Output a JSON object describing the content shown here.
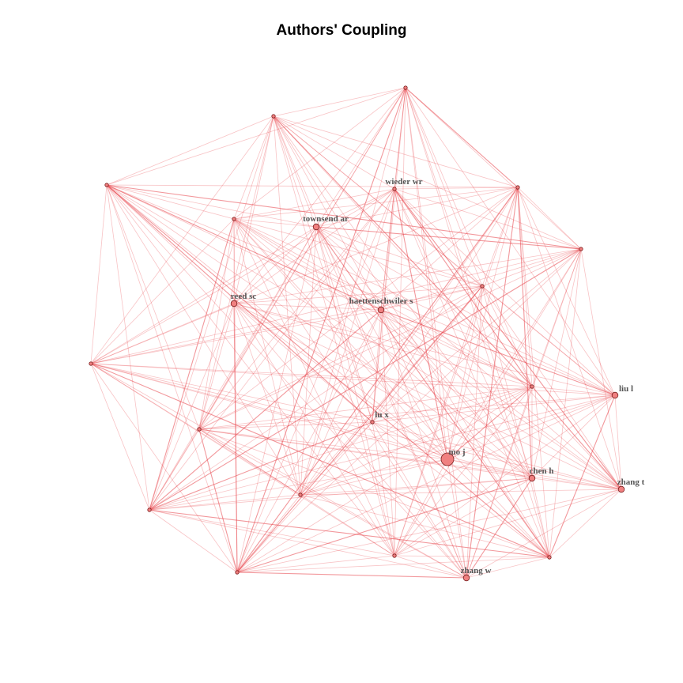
{
  "title": "Authors' Coupling",
  "colors": {
    "edge": "#e8434a",
    "node_fill": "#f08080",
    "node_stroke": "#7a1f1f",
    "label": "#555555"
  },
  "nodes": [
    {
      "id": "mo j",
      "label": "mo j",
      "degree_weight": 3
    },
    {
      "id": "chen h",
      "label": "chen h",
      "degree_weight": 2
    },
    {
      "id": "zhang t",
      "label": "zhang t",
      "degree_weight": 2
    },
    {
      "id": "liu l",
      "label": "liu l",
      "degree_weight": 2
    },
    {
      "id": "zhang w",
      "label": "zhang w",
      "degree_weight": 2
    },
    {
      "id": "lu x",
      "label": "lu x",
      "degree_weight": 1
    },
    {
      "id": "haettenschwiler s",
      "label": "haettenschwiler s",
      "degree_weight": 2
    },
    {
      "id": "reed sc",
      "label": "reed sc",
      "degree_weight": 2
    },
    {
      "id": "townsend ar",
      "label": "townsend ar",
      "degree_weight": 2
    },
    {
      "id": "wieder wr",
      "label": "wieder wr",
      "degree_weight": 1
    },
    {
      "id": "n1",
      "label": "",
      "degree_weight": 1
    },
    {
      "id": "n2",
      "label": "",
      "degree_weight": 1
    },
    {
      "id": "n3",
      "label": "",
      "degree_weight": 1
    },
    {
      "id": "n4",
      "label": "",
      "degree_weight": 1
    },
    {
      "id": "n5",
      "label": "",
      "degree_weight": 1
    },
    {
      "id": "n6",
      "label": "",
      "degree_weight": 1
    },
    {
      "id": "n7",
      "label": "",
      "degree_weight": 1
    },
    {
      "id": "n8",
      "label": "",
      "degree_weight": 1
    },
    {
      "id": "n9",
      "label": "",
      "degree_weight": 1
    },
    {
      "id": "n10",
      "label": "",
      "degree_weight": 1
    },
    {
      "id": "n11",
      "label": "",
      "degree_weight": 1
    },
    {
      "id": "n12",
      "label": "",
      "degree_weight": 1
    },
    {
      "id": "n13",
      "label": "",
      "degree_weight": 1
    }
  ]
}
